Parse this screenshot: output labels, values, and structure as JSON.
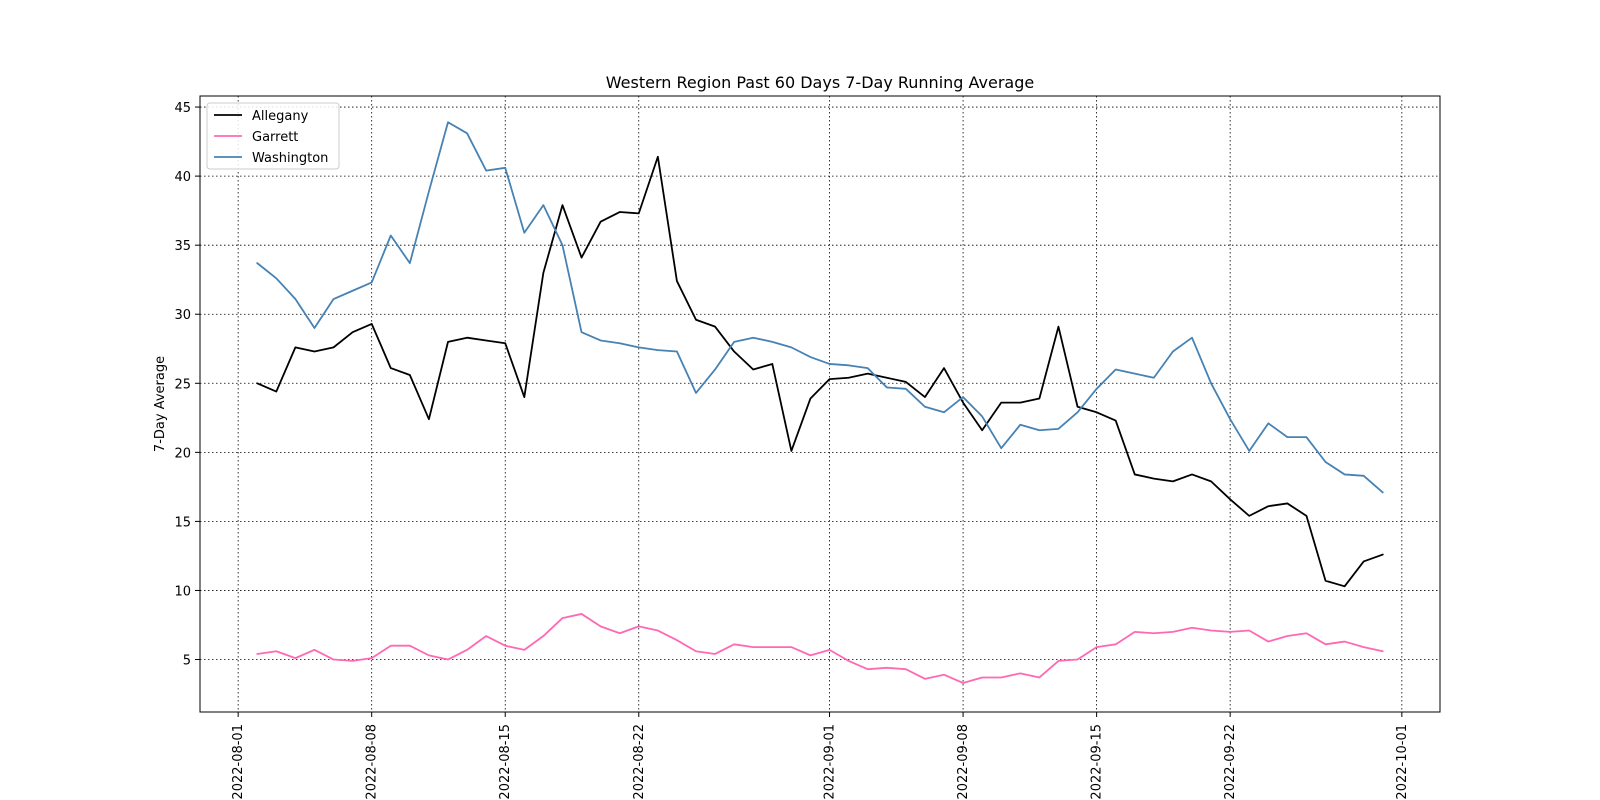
{
  "chart_data": {
    "type": "line",
    "title": "Western Region Past 60 Days 7-Day Running Average",
    "xlabel": "",
    "ylabel": "7-Day Average",
    "x_ticks": [
      "2022-08-01",
      "2022-08-08",
      "2022-08-15",
      "2022-08-22",
      "2022-09-01",
      "2022-09-08",
      "2022-09-15",
      "2022-09-22",
      "2022-10-01"
    ],
    "y_ticks": [
      5,
      10,
      15,
      20,
      25,
      30,
      35,
      40,
      45
    ],
    "xlim": [
      "2022-07-30",
      "2022-10-03"
    ],
    "ylim": [
      1.2,
      45.8
    ],
    "grid": true,
    "grid_style": "dotted",
    "legend_position": "upper-left",
    "x": [
      "2022-08-02",
      "2022-08-03",
      "2022-08-04",
      "2022-08-05",
      "2022-08-06",
      "2022-08-07",
      "2022-08-08",
      "2022-08-09",
      "2022-08-10",
      "2022-08-11",
      "2022-08-12",
      "2022-08-13",
      "2022-08-14",
      "2022-08-15",
      "2022-08-16",
      "2022-08-17",
      "2022-08-18",
      "2022-08-19",
      "2022-08-20",
      "2022-08-21",
      "2022-08-22",
      "2022-08-23",
      "2022-08-24",
      "2022-08-25",
      "2022-08-26",
      "2022-08-27",
      "2022-08-28",
      "2022-08-29",
      "2022-08-30",
      "2022-08-31",
      "2022-09-01",
      "2022-09-02",
      "2022-09-03",
      "2022-09-04",
      "2022-09-05",
      "2022-09-06",
      "2022-09-07",
      "2022-09-08",
      "2022-09-09",
      "2022-09-10",
      "2022-09-11",
      "2022-09-12",
      "2022-09-13",
      "2022-09-14",
      "2022-09-15",
      "2022-09-16",
      "2022-09-17",
      "2022-09-18",
      "2022-09-19",
      "2022-09-20",
      "2022-09-21",
      "2022-09-22",
      "2022-09-23",
      "2022-09-24",
      "2022-09-25",
      "2022-09-26",
      "2022-09-27",
      "2022-09-28",
      "2022-09-29",
      "2022-09-30"
    ],
    "series": [
      {
        "name": "Allegany",
        "color": "#000000",
        "values": [
          25.0,
          24.4,
          27.6,
          27.3,
          27.6,
          28.7,
          29.3,
          26.1,
          25.6,
          22.4,
          28.0,
          28.3,
          28.1,
          27.9,
          24.0,
          33.0,
          37.9,
          34.1,
          36.7,
          37.4,
          37.3,
          41.4,
          32.4,
          29.6,
          29.1,
          27.3,
          26.0,
          26.4,
          20.1,
          23.9,
          25.3,
          25.4,
          25.7,
          25.4,
          25.1,
          24.0,
          26.1,
          23.6,
          21.6,
          23.6,
          23.6,
          23.9,
          29.1,
          23.3,
          22.9,
          22.3,
          18.4,
          18.1,
          17.9,
          18.4,
          17.9,
          16.6,
          15.4,
          16.1,
          16.3,
          15.4,
          10.7,
          10.3,
          12.1,
          12.6
        ]
      },
      {
        "name": "Garrett",
        "color": "#ff69b4",
        "values": [
          5.4,
          5.6,
          5.1,
          5.7,
          5.0,
          4.9,
          5.1,
          6.0,
          6.0,
          5.3,
          5.0,
          5.7,
          6.7,
          6.0,
          5.7,
          6.7,
          8.0,
          8.3,
          7.4,
          6.9,
          7.4,
          7.1,
          6.4,
          5.6,
          5.4,
          6.1,
          5.9,
          5.9,
          5.9,
          5.3,
          5.7,
          4.9,
          4.3,
          4.4,
          4.3,
          3.6,
          3.9,
          3.3,
          3.7,
          3.7,
          4.0,
          3.7,
          4.9,
          5.0,
          5.9,
          6.1,
          7.0,
          6.9,
          7.0,
          7.3,
          7.1,
          7.0,
          7.1,
          6.3,
          6.7,
          6.9,
          6.1,
          6.3,
          5.9,
          5.6
        ]
      },
      {
        "name": "Washington",
        "color": "#4682b4",
        "values": [
          33.7,
          32.6,
          31.1,
          29.0,
          31.1,
          31.7,
          32.3,
          35.7,
          33.7,
          38.9,
          43.9,
          43.1,
          40.4,
          40.6,
          35.9,
          37.9,
          35.0,
          28.7,
          28.1,
          27.9,
          27.6,
          27.4,
          27.3,
          24.3,
          26.0,
          28.0,
          28.3,
          28.0,
          27.6,
          26.9,
          26.4,
          26.3,
          26.1,
          24.7,
          24.6,
          23.3,
          22.9,
          24.0,
          22.6,
          20.3,
          22.0,
          21.6,
          21.7,
          22.9,
          24.6,
          26.0,
          25.7,
          25.4,
          27.3,
          28.3,
          25.0,
          22.4,
          20.1,
          22.1,
          21.1,
          21.1,
          19.3,
          18.4,
          18.3,
          17.1
        ]
      }
    ]
  }
}
